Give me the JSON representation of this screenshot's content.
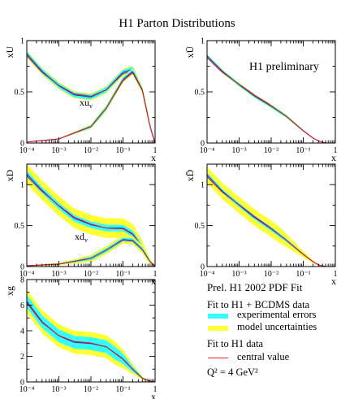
{
  "title": "H1 Parton Distributions",
  "legend": {
    "heading": "Prel. H1 2002 PDF Fit",
    "group1": "Fit to H1 + BCDMS data",
    "items1": [
      {
        "label": "experimental errors",
        "color": "#33ffff"
      },
      {
        "label": "model uncertainties",
        "color": "#ffff33"
      }
    ],
    "group2": "Fit to H1 data",
    "items2": [
      {
        "label": "central value",
        "color": "#e41a1c"
      }
    ],
    "scale_note": "Q² = 4 GeV²"
  },
  "colors": {
    "exp_band": "#33ffff",
    "model_band": "#ffff33",
    "h1bcdms_central": "#3030c0",
    "h1_central": "#e41a1c"
  },
  "chart_data": [
    {
      "id": "xU",
      "type": "line",
      "ylabel": "xU",
      "xlabel": "x",
      "xscale": "log",
      "xlim": [
        0.0001,
        1
      ],
      "ylim": [
        0,
        1
      ],
      "yticks": [
        "0",
        "0.5",
        "1"
      ],
      "yticks_minor": [
        0.25,
        0.75
      ],
      "xticks": [
        "10⁻⁴",
        "10⁻³",
        "10⁻²",
        "10⁻¹",
        "1"
      ],
      "annotations": [
        {
          "text": "H1 preliminary",
          "note": ""
        },
        {
          "text": "xu",
          "sub": "v"
        }
      ],
      "series": [
        {
          "role": "total",
          "x": [
            0.0001,
            0.0003,
            0.001,
            0.003,
            0.01,
            0.03,
            0.1,
            0.2,
            0.4,
            0.7,
            1.0
          ],
          "y": [
            0.87,
            0.7,
            0.56,
            0.47,
            0.45,
            0.52,
            0.69,
            0.72,
            0.52,
            0.16,
            0.0
          ],
          "exp": 0.025,
          "model": 0.035
        },
        {
          "role": "valence",
          "x": [
            0.0001,
            0.001,
            0.01,
            0.03,
            0.1,
            0.2,
            0.4,
            0.7,
            1.0
          ],
          "y": [
            0.01,
            0.04,
            0.16,
            0.34,
            0.62,
            0.7,
            0.52,
            0.16,
            0.0
          ],
          "exp": 0.02,
          "model": 0.03
        }
      ]
    },
    {
      "id": "xUbar",
      "type": "line",
      "ylabel": "xŪ",
      "xlabel": "x",
      "xscale": "log",
      "xlim": [
        0.0001,
        1
      ],
      "ylim": [
        0,
        1
      ],
      "yticks": [
        "0",
        "0.5",
        "1"
      ],
      "yticks_minor": [
        0.25,
        0.75
      ],
      "xticks": [
        "10⁻⁴",
        "10⁻³",
        "10⁻²",
        "10⁻¹",
        "1"
      ],
      "annotations": [
        {
          "text": "H1 preliminary"
        }
      ],
      "series": [
        {
          "role": "sea",
          "x": [
            0.0001,
            0.0003,
            0.001,
            0.003,
            0.01,
            0.03,
            0.1,
            0.2,
            0.3,
            0.5
          ],
          "y": [
            0.85,
            0.7,
            0.57,
            0.46,
            0.36,
            0.26,
            0.12,
            0.05,
            0.02,
            0.0
          ],
          "exp": 0.015,
          "model": 0.02
        }
      ]
    },
    {
      "id": "xD",
      "type": "line",
      "ylabel": "xD",
      "xlabel": "x",
      "xscale": "log",
      "xlim": [
        0.0001,
        1
      ],
      "ylim": [
        0,
        1.25
      ],
      "yticks": [
        "0",
        "0.5",
        "1"
      ],
      "yticks_minor": [
        0.25,
        0.75
      ],
      "xticks": [
        "10⁻⁴",
        "10⁻³",
        "10⁻²",
        "10⁻¹",
        "1"
      ],
      "annotations": [
        {
          "text": "xd",
          "sub": "v"
        }
      ],
      "series": [
        {
          "role": "total",
          "x": [
            0.0001,
            0.0003,
            0.001,
            0.003,
            0.01,
            0.03,
            0.1,
            0.2,
            0.4,
            0.7,
            1.0
          ],
          "y": [
            1.13,
            0.93,
            0.74,
            0.59,
            0.51,
            0.47,
            0.47,
            0.4,
            0.24,
            0.07,
            0.0
          ],
          "exp": 0.04,
          "model": 0.12
        },
        {
          "role": "valence",
          "x": [
            0.0001,
            0.001,
            0.01,
            0.03,
            0.1,
            0.2,
            0.4,
            0.7,
            1.0
          ],
          "y": [
            0.01,
            0.03,
            0.1,
            0.2,
            0.33,
            0.32,
            0.21,
            0.06,
            0.0
          ],
          "exp": 0.025,
          "model": 0.05
        }
      ]
    },
    {
      "id": "xDbar",
      "type": "line",
      "ylabel": "xD̄",
      "xlabel": "x",
      "xscale": "log",
      "xlim": [
        0.0001,
        1
      ],
      "ylim": [
        0,
        1.25
      ],
      "yticks": [
        "0",
        "0.5",
        "1"
      ],
      "yticks_minor": [
        0.25,
        0.75
      ],
      "xticks": [
        "10⁻⁴",
        "10⁻³",
        "10⁻²",
        "10⁻¹",
        "1"
      ],
      "annotations": [],
      "series": [
        {
          "role": "sea",
          "x": [
            0.0001,
            0.0003,
            0.001,
            0.003,
            0.01,
            0.03,
            0.1,
            0.2,
            0.3,
            0.5
          ],
          "y": [
            1.12,
            0.92,
            0.75,
            0.6,
            0.46,
            0.32,
            0.15,
            0.06,
            0.02,
            0.0
          ],
          "exp": 0.025,
          "model": 0.1
        }
      ]
    },
    {
      "id": "xg",
      "type": "line",
      "ylabel": "xg",
      "xlabel": "x",
      "xscale": "log",
      "xlim": [
        0.0001,
        1
      ],
      "ylim": [
        0,
        8
      ],
      "yticks": [
        "0",
        "2",
        "4",
        "6",
        "8"
      ],
      "yticks_minor": [
        1,
        3,
        5,
        7
      ],
      "xticks": [
        "10⁻⁴",
        "10⁻³",
        "10⁻²",
        "10⁻¹",
        "1"
      ],
      "annotations": [],
      "series": [
        {
          "role": "gluon",
          "x": [
            0.0001,
            0.0003,
            0.001,
            0.003,
            0.01,
            0.03,
            0.1,
            0.2,
            0.4,
            0.7,
            1.0
          ],
          "y": [
            6.3,
            4.7,
            3.6,
            3.1,
            3.0,
            2.75,
            1.8,
            1.0,
            0.3,
            0.05,
            0.0
          ],
          "exp": 0.5,
          "model": 0.9
        }
      ]
    }
  ]
}
